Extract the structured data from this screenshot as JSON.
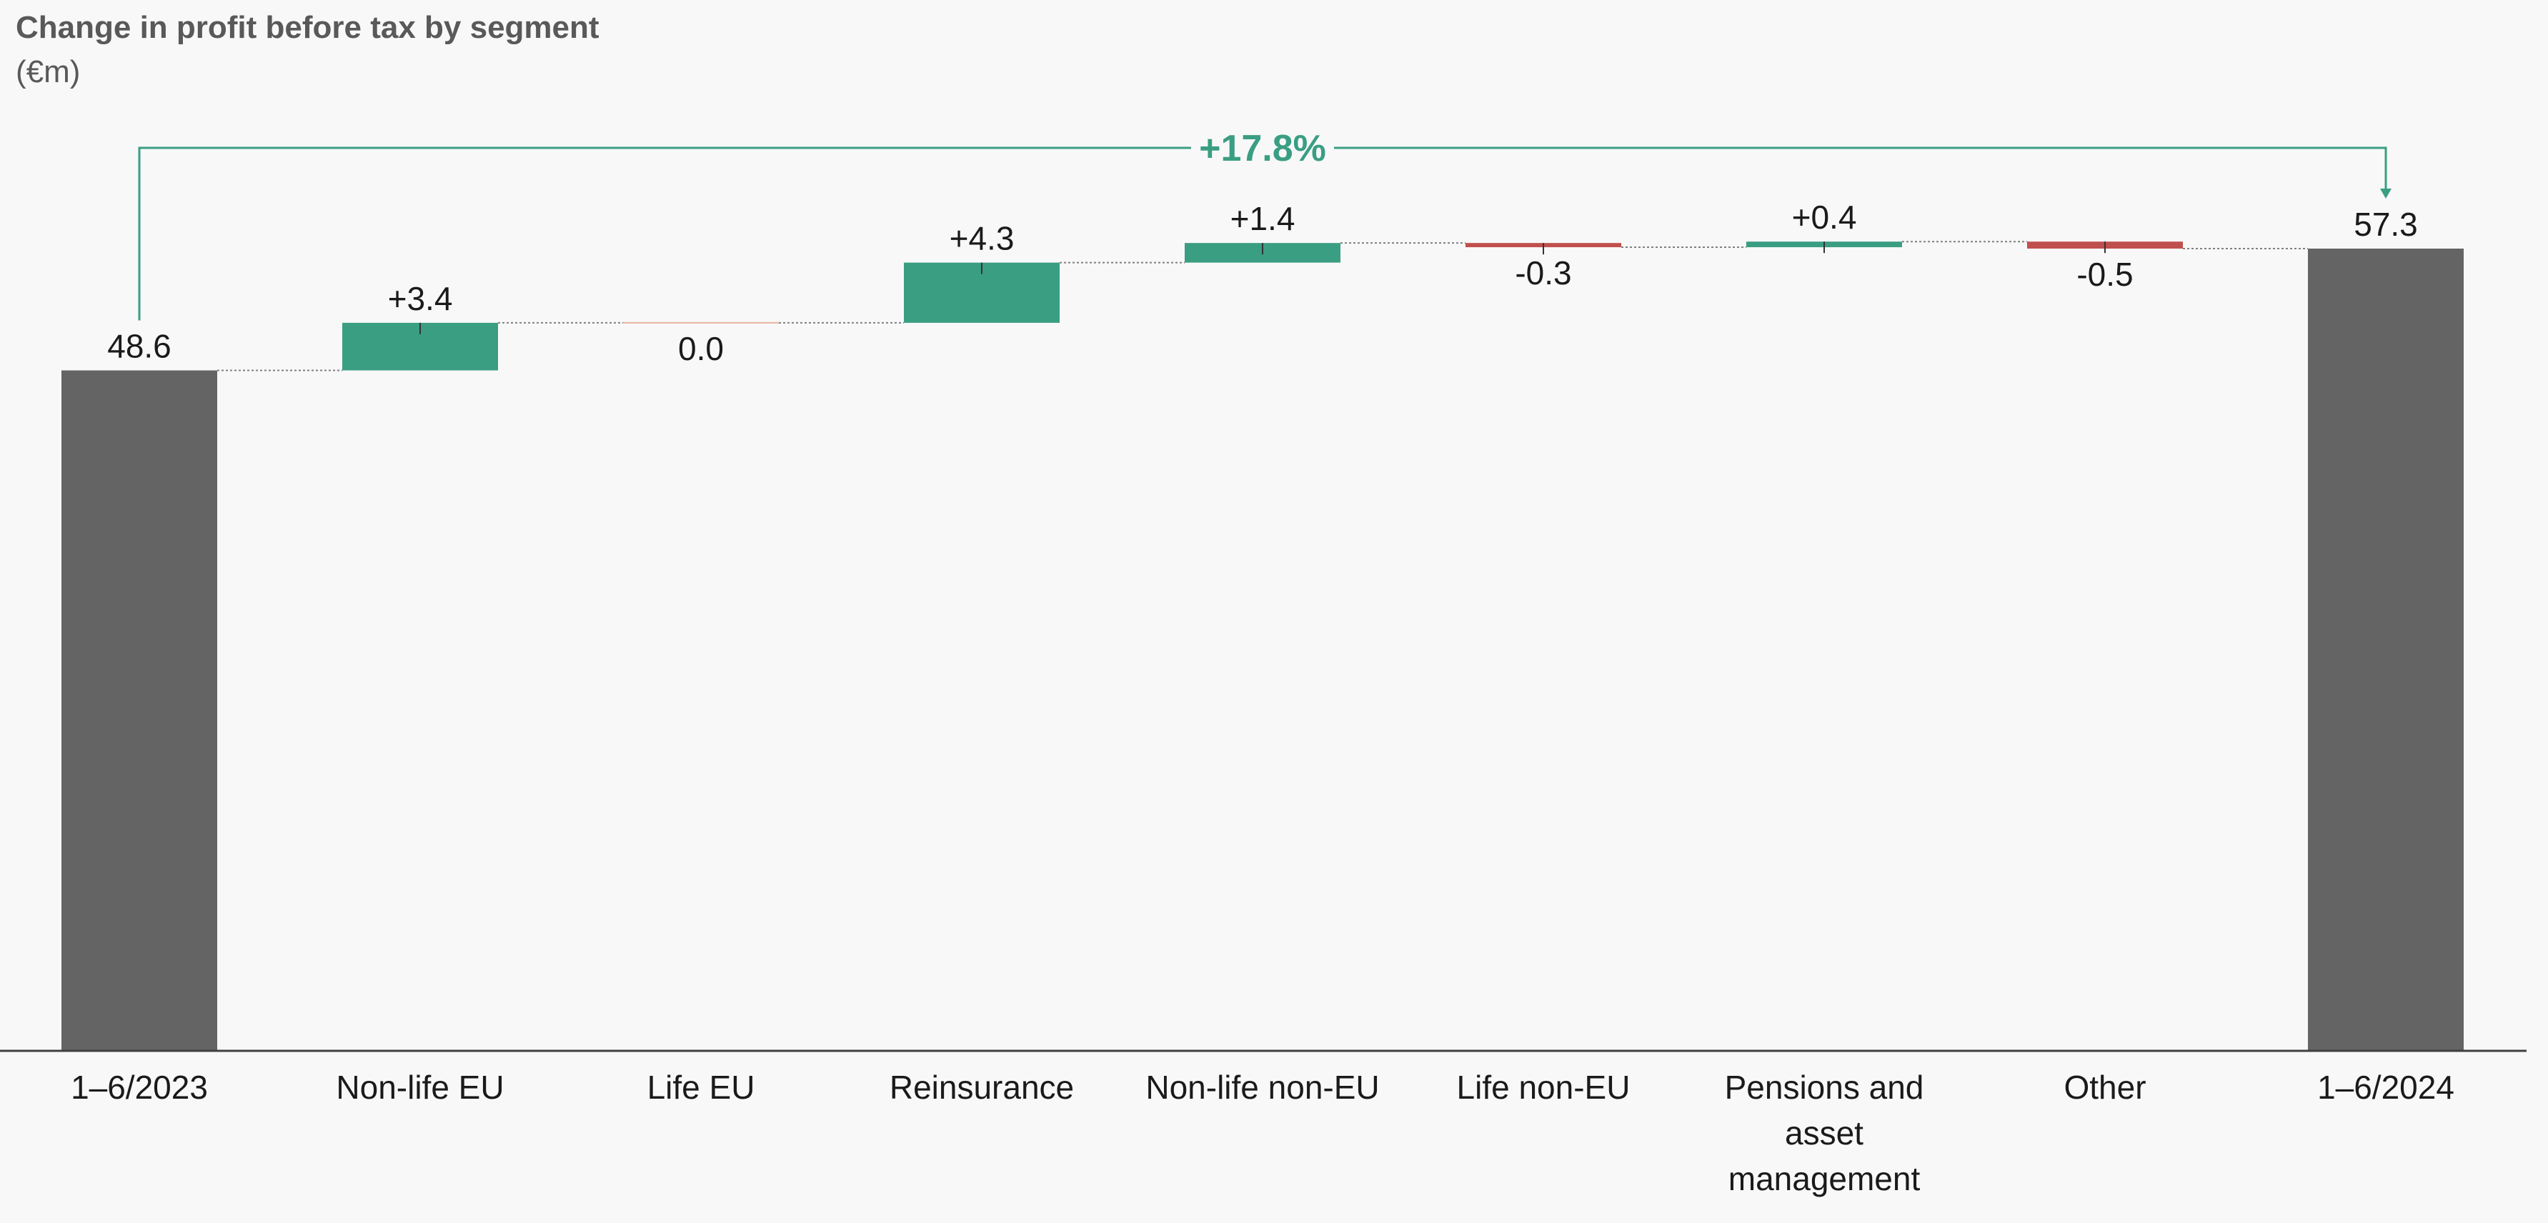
{
  "chart_data": {
    "type": "bar",
    "subtype": "waterfall",
    "title": "Change in profit before tax by segment",
    "subtitle": "(€m)",
    "categories": [
      "1–6/2023",
      "Non-life EU",
      "Life EU",
      "Reinsurance",
      "Non-life non-EU",
      "Life non-EU",
      "Pensions and asset management",
      "Other",
      "1–6/2024"
    ],
    "category_lines": [
      [
        "1–6/2023"
      ],
      [
        "Non-life EU"
      ],
      [
        "Life EU"
      ],
      [
        "Reinsurance"
      ],
      [
        "Non-life non-EU"
      ],
      [
        "Life non-EU"
      ],
      [
        "Pensions and",
        "asset",
        "management"
      ],
      [
        "Other"
      ],
      [
        "1–6/2024"
      ]
    ],
    "values": [
      48.6,
      3.4,
      0.0,
      4.3,
      1.4,
      -0.3,
      0.4,
      -0.5,
      57.3
    ],
    "value_labels": [
      "48.6",
      "+3.4",
      "0.0",
      "+4.3",
      "+1.4",
      "-0.3",
      "+0.4",
      "-0.5",
      "57.3"
    ],
    "bar_kinds": [
      "total",
      "delta",
      "delta",
      "delta",
      "delta",
      "delta",
      "delta",
      "delta",
      "total"
    ],
    "growth_label": "+17.8%",
    "ylim": [
      0,
      60
    ],
    "grid": false,
    "legend": "none",
    "colors": {
      "total": "#646464",
      "increase": "#3a9e82",
      "decrease": "#c0504d",
      "zero": "#e8b4a0",
      "growth": "#3a9e82",
      "connector": "#7f7f7f",
      "axis": "#404040"
    }
  }
}
